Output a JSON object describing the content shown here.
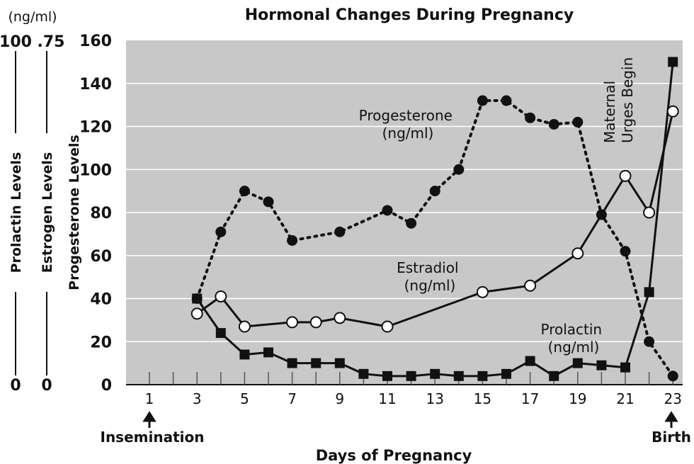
{
  "chart_data": {
    "type": "line",
    "title": "Hormonal Changes During Pregnancy",
    "xlabel": "Days of Pregnancy",
    "x_ticks": [
      1,
      3,
      5,
      7,
      9,
      11,
      13,
      15,
      17,
      19,
      21,
      23
    ],
    "xlim": [
      0,
      23
    ],
    "y_ticks": [
      0,
      20,
      40,
      60,
      80,
      100,
      120,
      140,
      160
    ],
    "ylim": [
      0,
      160
    ],
    "axes": {
      "prolactin": {
        "label": "Prolactin Levels",
        "top": "100",
        "bottom": "0"
      },
      "estrogen": {
        "label": "Estrogen Levels",
        "top": ".75",
        "bottom": "0"
      },
      "progesterone": {
        "label": "Progesterone Levels"
      },
      "unit_label": "(ng/ml)"
    },
    "events": [
      {
        "label": "Insemination",
        "x": 1
      },
      {
        "label": "Birth",
        "x": 23
      }
    ],
    "annotation_maternal": [
      "Maternal",
      "Urges Begin"
    ],
    "series": [
      {
        "name": "Progesterone (ng/ml)",
        "label_lines": [
          "Progesterone",
          "(ng/ml)"
        ],
        "style": "dotted",
        "marker": "filled-circle",
        "x": [
          3,
          4,
          5,
          6,
          7,
          9,
          11,
          12,
          13,
          14,
          15,
          16,
          17,
          18,
          19,
          20,
          21,
          22,
          23
        ],
        "y": [
          40,
          71,
          90,
          85,
          67,
          71,
          81,
          75,
          90,
          100,
          132,
          132,
          124,
          121,
          122,
          79,
          62,
          20,
          4
        ]
      },
      {
        "name": "Estradiol (ng/ml)",
        "label_lines": [
          "Estradiol",
          "(ng/ml)"
        ],
        "style": "solid",
        "marker": "open-circle",
        "x": [
          3,
          4,
          5,
          7,
          8,
          9,
          11,
          15,
          17,
          19,
          21,
          22,
          23
        ],
        "y": [
          33,
          41,
          27,
          29,
          29,
          31,
          27,
          43,
          46,
          61,
          97,
          80,
          127
        ]
      },
      {
        "name": "Prolactin (ng/ml)",
        "label_lines": [
          "Prolactin",
          "(ng/ml)"
        ],
        "style": "solid",
        "marker": "filled-square",
        "x": [
          3,
          4,
          5,
          6,
          7,
          8,
          9,
          10,
          11,
          12,
          13,
          14,
          15,
          16,
          17,
          18,
          19,
          20,
          21,
          22,
          23
        ],
        "y": [
          40,
          24,
          14,
          15,
          10,
          10,
          10,
          5,
          4,
          4,
          5,
          4,
          4,
          5,
          11,
          4,
          10,
          9,
          8,
          43,
          150
        ]
      }
    ],
    "colors": {
      "plot_bg": "#c8c8c8",
      "grid": "#ffffff",
      "ink": "#111111"
    }
  }
}
